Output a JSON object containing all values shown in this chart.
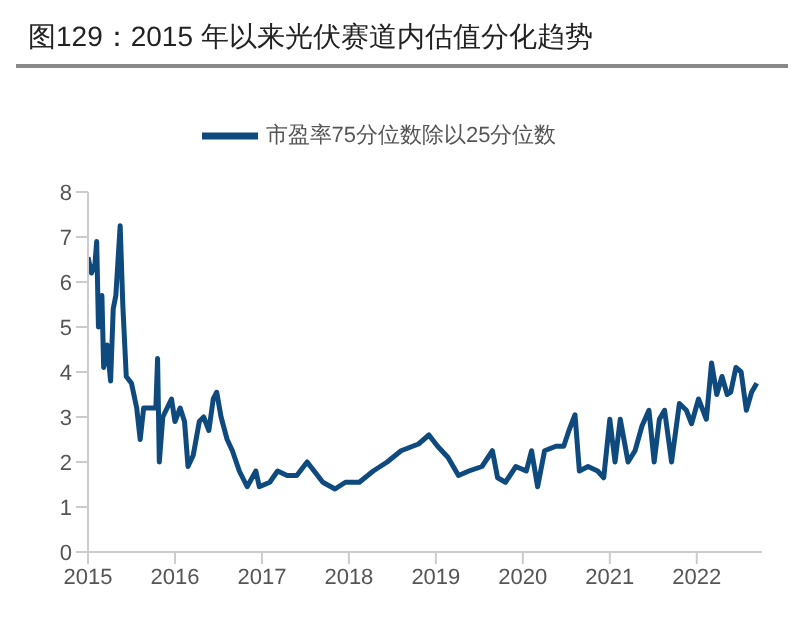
{
  "chart_data": {
    "type": "line",
    "title": "图129：2015 年以来光伏赛道内估值分化趋势",
    "legend": "top",
    "grid": false,
    "marker": "none",
    "line_style": "solid",
    "xlim": [
      2015,
      2022.75
    ],
    "xticks": [
      2015,
      2016,
      2017,
      2018,
      2019,
      2020,
      2021,
      2022
    ],
    "ylim": [
      0,
      8
    ],
    "yticks": [
      0,
      1,
      2,
      3,
      4,
      5,
      6,
      7,
      8
    ],
    "series": [
      {
        "name": "市盈率75分位数除以25分位数",
        "color": "#0f4a7e",
        "x": [
          2015.0,
          2015.04,
          2015.08,
          2015.1,
          2015.12,
          2015.16,
          2015.18,
          2015.22,
          2015.26,
          2015.29,
          2015.32,
          2015.37,
          2015.4,
          2015.44,
          2015.5,
          2015.56,
          2015.6,
          2015.64,
          2015.72,
          2015.78,
          2015.8,
          2015.82,
          2015.86,
          2015.91,
          2015.96,
          2016.0,
          2016.06,
          2016.11,
          2016.15,
          2016.21,
          2016.28,
          2016.33,
          2016.39,
          2016.44,
          2016.48,
          2016.53,
          2016.6,
          2016.66,
          2016.74,
          2016.83,
          2016.93,
          2016.97,
          2017.09,
          2017.18,
          2017.29,
          2017.4,
          2017.52,
          2017.6,
          2017.7,
          2017.84,
          2017.96,
          2018.12,
          2018.28,
          2018.44,
          2018.6,
          2018.8,
          2018.92,
          2019.02,
          2019.14,
          2019.26,
          2019.38,
          2019.53,
          2019.65,
          2019.71,
          2019.8,
          2019.92,
          2020.04,
          2020.1,
          2020.17,
          2020.25,
          2020.38,
          2020.47,
          2020.53,
          2020.6,
          2020.65,
          2020.75,
          2020.86,
          2020.93,
          2021.0,
          2021.06,
          2021.12,
          2021.21,
          2021.29,
          2021.37,
          2021.45,
          2021.51,
          2021.57,
          2021.63,
          2021.71,
          2021.8,
          2021.88,
          2021.94,
          2022.02,
          2022.11,
          2022.17,
          2022.23,
          2022.29,
          2022.35,
          2022.39,
          2022.45,
          2022.51,
          2022.57,
          2022.63,
          2022.69
        ],
        "values": [
          6.55,
          6.2,
          6.4,
          6.9,
          5.0,
          5.7,
          4.1,
          4.6,
          3.8,
          5.4,
          5.7,
          7.25,
          5.5,
          3.9,
          3.75,
          3.2,
          2.5,
          3.2,
          3.2,
          3.2,
          4.3,
          2.0,
          3.0,
          3.2,
          3.4,
          2.9,
          3.2,
          2.9,
          1.9,
          2.15,
          2.9,
          3.0,
          2.7,
          3.4,
          3.55,
          3.0,
          2.5,
          2.25,
          1.8,
          1.45,
          1.8,
          1.45,
          1.55,
          1.8,
          1.7,
          1.7,
          2.0,
          1.8,
          1.55,
          1.4,
          1.55,
          1.55,
          1.8,
          2.0,
          2.25,
          2.4,
          2.6,
          2.35,
          2.1,
          1.7,
          1.8,
          1.9,
          2.25,
          1.65,
          1.55,
          1.9,
          1.8,
          2.25,
          1.45,
          2.25,
          2.35,
          2.35,
          2.7,
          3.05,
          1.8,
          1.9,
          1.8,
          1.65,
          2.95,
          2.0,
          2.95,
          2.0,
          2.25,
          2.8,
          3.15,
          2.0,
          2.95,
          3.15,
          2.0,
          3.3,
          3.15,
          2.85,
          3.4,
          2.95,
          4.2,
          3.5,
          3.9,
          3.5,
          3.55,
          4.1,
          4.0,
          3.15,
          3.55,
          3.75
        ]
      }
    ]
  }
}
